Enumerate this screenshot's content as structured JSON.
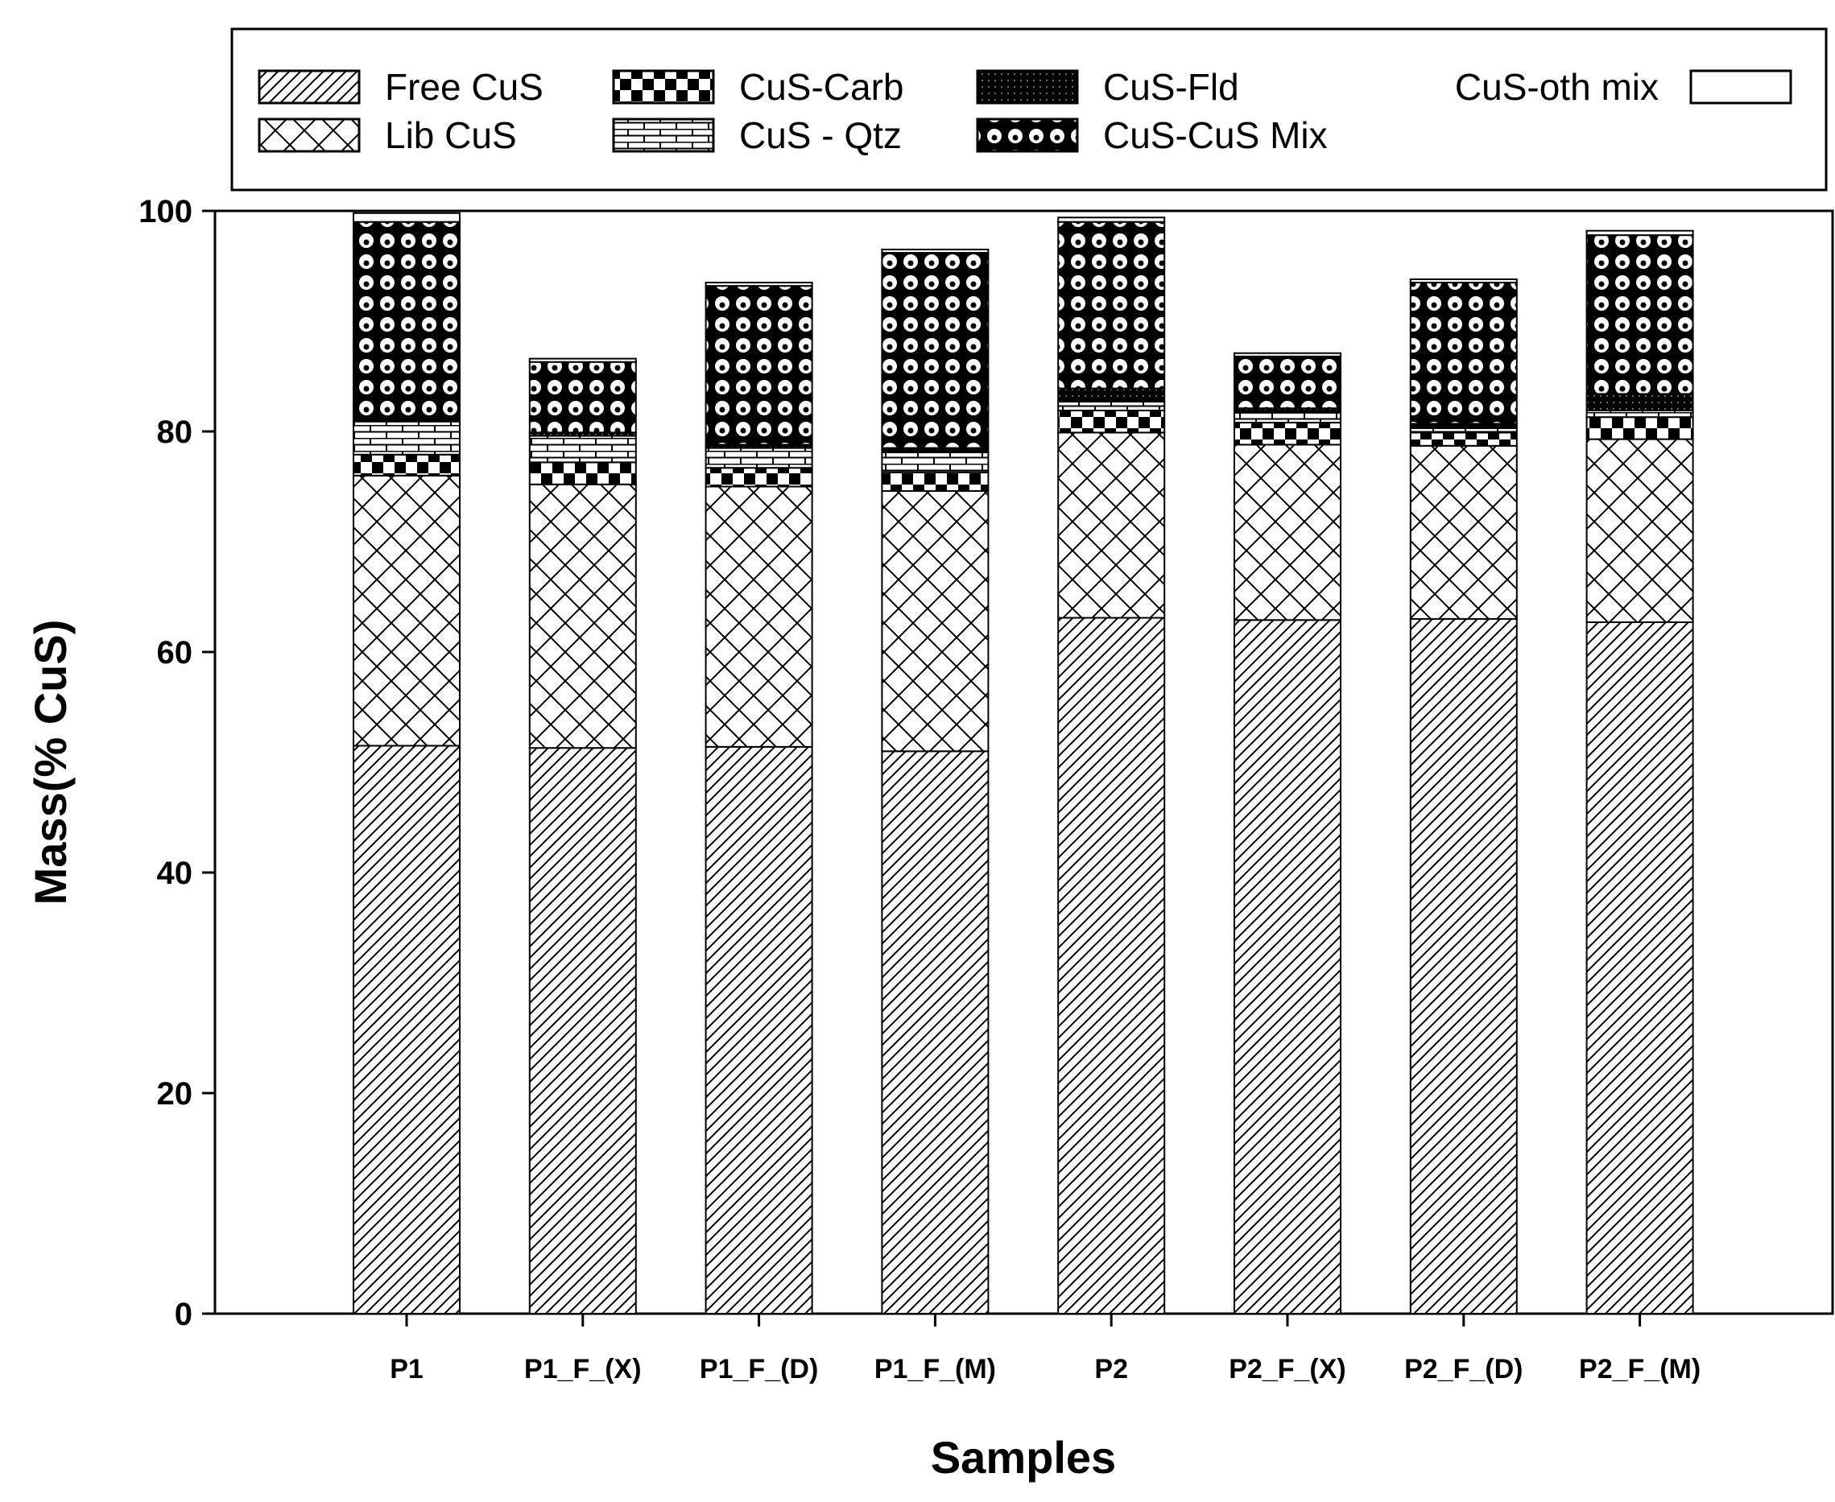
{
  "chart_data": {
    "type": "bar",
    "stacked": true,
    "title": "",
    "xlabel": "Samples",
    "ylabel": "Mass(% CuS)",
    "ylim": [
      0,
      100
    ],
    "yticks": [
      0,
      20,
      40,
      60,
      80,
      100
    ],
    "yticks_text": [
      "0",
      "20",
      "40",
      "60",
      "80",
      "100"
    ],
    "grid": false,
    "legend_position": "top",
    "categories": [
      "P1",
      "P1_F_(X)",
      "P1_F_(D)",
      "P1_F_(M)",
      "P2",
      "P2_F_(X)",
      "P2_F_(D)",
      "P2_F_(M)"
    ],
    "series": [
      {
        "name": "Free CuS",
        "pattern": "diagonal-hatch",
        "values": [
          51.5,
          51.3,
          51.4,
          51.0,
          63.1,
          62.9,
          63.0,
          62.7
        ]
      },
      {
        "name": "Lib CuS",
        "pattern": "cross-hatch",
        "values": [
          24.5,
          23.9,
          23.6,
          23.6,
          16.8,
          15.9,
          15.7,
          16.6
        ]
      },
      {
        "name": "CuS-Carb",
        "pattern": "checkerboard",
        "values": [
          1.9,
          2.0,
          1.7,
          1.7,
          2.0,
          2.0,
          1.2,
          2.0
        ]
      },
      {
        "name": "CuS - Qtz",
        "pattern": "brick",
        "values": [
          3.0,
          2.4,
          1.8,
          1.8,
          0.8,
          0.9,
          0.4,
          0.6
        ]
      },
      {
        "name": "CuS-Fld",
        "pattern": "dotted-black",
        "values": [
          0.4,
          0.3,
          0.3,
          0.4,
          1.2,
          0.4,
          0.4,
          1.5
        ]
      },
      {
        "name": "CuS-CuS Mix",
        "pattern": "circles",
        "values": [
          17.7,
          6.4,
          14.4,
          17.7,
          15.1,
          4.7,
          12.8,
          14.4
        ]
      },
      {
        "name": "CuS-oth mix",
        "pattern": "blank",
        "values": [
          0.8,
          0.3,
          0.3,
          0.3,
          0.4,
          0.3,
          0.3,
          0.4
        ]
      }
    ]
  }
}
